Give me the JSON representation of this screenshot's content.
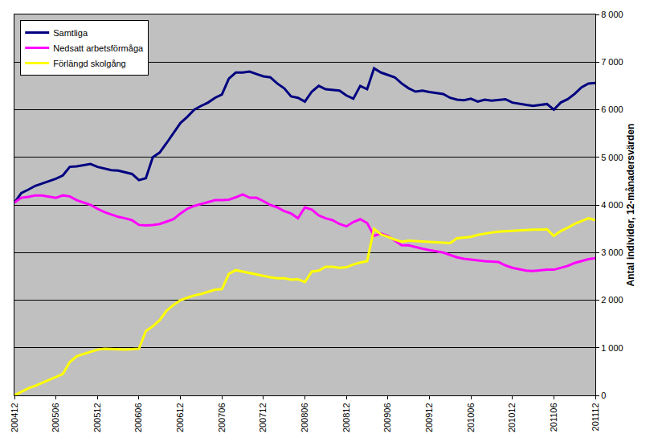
{
  "chart_data": {
    "type": "line",
    "y_label": "Antal individer, 12-månadersvärden",
    "categories": [
      "200412",
      null,
      null,
      null,
      null,
      null,
      "200506",
      null,
      null,
      null,
      null,
      null,
      "200512",
      null,
      null,
      null,
      null,
      null,
      "200606",
      null,
      null,
      null,
      null,
      null,
      "200612",
      null,
      null,
      null,
      null,
      null,
      "200706",
      null,
      null,
      null,
      null,
      null,
      "200712",
      null,
      null,
      null,
      null,
      null,
      "200806",
      null,
      null,
      null,
      null,
      null,
      "200812",
      null,
      null,
      null,
      null,
      null,
      "200906",
      null,
      null,
      null,
      null,
      null,
      "200912",
      null,
      null,
      null,
      null,
      null,
      "201006",
      null,
      null,
      null,
      null,
      null,
      "201012",
      null,
      null,
      null,
      null,
      null,
      "201106",
      null,
      null,
      null,
      null,
      null,
      "201112"
    ],
    "series": [
      {
        "name": "Samtliga",
        "color": "#000080",
        "values": [
          4050,
          4250,
          4320,
          4400,
          4450,
          4500,
          4550,
          4620,
          4800,
          4810,
          4830,
          4860,
          4800,
          4760,
          4730,
          4720,
          4680,
          4650,
          4520,
          4560,
          5000,
          5100,
          5300,
          5500,
          5720,
          5850,
          6000,
          6080,
          6150,
          6250,
          6320,
          6650,
          6780,
          6780,
          6800,
          6750,
          6700,
          6680,
          6550,
          6450,
          6280,
          6250,
          6170,
          6380,
          6500,
          6430,
          6420,
          6400,
          6300,
          6230,
          6500,
          6430,
          6870,
          6780,
          6730,
          6680,
          6550,
          6450,
          6380,
          6400,
          6370,
          6350,
          6330,
          6250,
          6210,
          6200,
          6230,
          6170,
          6210,
          6190,
          6200,
          6220,
          6150,
          6120,
          6100,
          6080,
          6100,
          6120,
          6000,
          6150,
          6220,
          6330,
          6470,
          6550,
          6560
        ]
      },
      {
        "name": "Nedsatt arbetsförmåga",
        "color": "#FF00FF",
        "values": [
          4050,
          4150,
          4170,
          4200,
          4200,
          4180,
          4150,
          4200,
          4180,
          4100,
          4050,
          4000,
          3920,
          3850,
          3800,
          3750,
          3720,
          3680,
          3580,
          3570,
          3580,
          3600,
          3650,
          3700,
          3820,
          3920,
          3980,
          4020,
          4050,
          4100,
          4100,
          4110,
          4160,
          4220,
          4150,
          4150,
          4080,
          4000,
          3950,
          3870,
          3820,
          3720,
          3950,
          3900,
          3780,
          3720,
          3680,
          3600,
          3550,
          3640,
          3700,
          3620,
          3350,
          3400,
          3350,
          3250,
          3150,
          3150,
          3110,
          3080,
          3050,
          3020,
          3000,
          2950,
          2900,
          2870,
          2850,
          2830,
          2820,
          2810,
          2800,
          2730,
          2680,
          2650,
          2620,
          2610,
          2630,
          2640,
          2640,
          2680,
          2720,
          2780,
          2820,
          2860,
          2880
        ]
      },
      {
        "name": "Förlängd skolgång",
        "color": "#FFFF00",
        "values": [
          0,
          70,
          150,
          200,
          260,
          330,
          380,
          450,
          700,
          820,
          870,
          920,
          960,
          980,
          970,
          960,
          960,
          970,
          980,
          1350,
          1450,
          1580,
          1780,
          1900,
          2000,
          2050,
          2100,
          2130,
          2180,
          2220,
          2230,
          2550,
          2630,
          2600,
          2560,
          2530,
          2500,
          2480,
          2460,
          2460,
          2430,
          2440,
          2380,
          2600,
          2620,
          2700,
          2700,
          2680,
          2690,
          2750,
          2790,
          2820,
          3500,
          3380,
          3330,
          3270,
          3230,
          3250,
          3240,
          3230,
          3220,
          3210,
          3200,
          3200,
          3300,
          3310,
          3330,
          3370,
          3400,
          3420,
          3440,
          3450,
          3460,
          3470,
          3470,
          3480,
          3480,
          3490,
          3350,
          3450,
          3520,
          3600,
          3660,
          3720,
          3680
        ]
      }
    ],
    "ylim": [
      0,
      8000
    ],
    "yticks": [
      0,
      {
        "value": 1000,
        "label": "1 000"
      },
      {
        "value": 2000,
        "label": "2 000"
      },
      {
        "value": 3000,
        "label": "3 000"
      },
      {
        "value": 4000,
        "label": "4 000"
      },
      {
        "value": 5000,
        "label": "5 000"
      },
      {
        "value": 6000,
        "label": "6 000"
      },
      {
        "value": 7000,
        "label": "7 000"
      },
      {
        "value": 8000,
        "label": "8 000"
      }
    ],
    "grid": true,
    "legend": "top-left"
  }
}
